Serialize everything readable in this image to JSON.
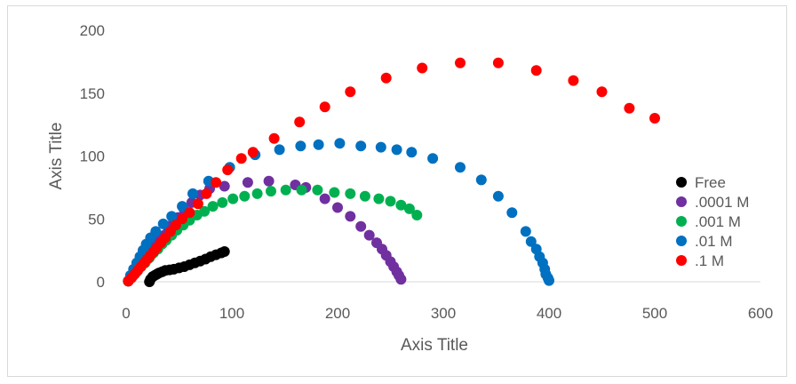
{
  "chart_data": {
    "type": "scatter",
    "title": "",
    "xlabel": "Axis Title",
    "ylabel": "Axis Title",
    "xlim": [
      0,
      600
    ],
    "ylim": [
      0,
      200
    ],
    "xticks": [
      "0",
      "100",
      "200",
      "300",
      "400",
      "500",
      "600"
    ],
    "yticks": [
      "0",
      "50",
      "100",
      "150",
      "200"
    ],
    "grid": false,
    "legend_position": "right",
    "series": [
      {
        "name": "Free",
        "color": "#000000",
        "points": [
          [
            2,
            0.5
          ],
          [
            22,
            0
          ],
          [
            23,
            2
          ],
          [
            25,
            4
          ],
          [
            27,
            5
          ],
          [
            29,
            6
          ],
          [
            31,
            7
          ],
          [
            34,
            8
          ],
          [
            37,
            9
          ],
          [
            41,
            9.5
          ],
          [
            45,
            10
          ],
          [
            50,
            11
          ],
          [
            55,
            12
          ],
          [
            60,
            13.5
          ],
          [
            65,
            15
          ],
          [
            70,
            16.5
          ],
          [
            75,
            18
          ],
          [
            80,
            20
          ],
          [
            85,
            21.5
          ],
          [
            90,
            23
          ],
          [
            93,
            24
          ]
        ]
      },
      {
        "name": ".0001 M",
        "color": "#7030a0",
        "points": [
          [
            2,
            0.5
          ],
          [
            5,
            4
          ],
          [
            8,
            8
          ],
          [
            12,
            12
          ],
          [
            16,
            17
          ],
          [
            20,
            21
          ],
          [
            24,
            25
          ],
          [
            28,
            29
          ],
          [
            32,
            33
          ],
          [
            36,
            37
          ],
          [
            40,
            42
          ],
          [
            44,
            46
          ],
          [
            49,
            51
          ],
          [
            55,
            57
          ],
          [
            62,
            63
          ],
          [
            70,
            69
          ],
          [
            79,
            74
          ],
          [
            93,
            76
          ],
          [
            115,
            79
          ],
          [
            135,
            80
          ],
          [
            160,
            77
          ],
          [
            170,
            75
          ],
          [
            188,
            66
          ],
          [
            200,
            59
          ],
          [
            212,
            52
          ],
          [
            222,
            44
          ],
          [
            230,
            37
          ],
          [
            237,
            31
          ],
          [
            242,
            26
          ],
          [
            246,
            21
          ],
          [
            250,
            16
          ],
          [
            253,
            12
          ],
          [
            256,
            8
          ],
          [
            258,
            5
          ],
          [
            260,
            2
          ]
        ]
      },
      {
        "name": ".001 M",
        "color": "#00b050",
        "points": [
          [
            2,
            0.5
          ],
          [
            6,
            4
          ],
          [
            10,
            8
          ],
          [
            14,
            12
          ],
          [
            18,
            15
          ],
          [
            22,
            19
          ],
          [
            26,
            23
          ],
          [
            30,
            26
          ],
          [
            34,
            30
          ],
          [
            38,
            33
          ],
          [
            43,
            37
          ],
          [
            48,
            41
          ],
          [
            54,
            45
          ],
          [
            60,
            49
          ],
          [
            67,
            53
          ],
          [
            74,
            56
          ],
          [
            82,
            60
          ],
          [
            91,
            63
          ],
          [
            101,
            66
          ],
          [
            112,
            68
          ],
          [
            124,
            70
          ],
          [
            137,
            72
          ],
          [
            151,
            73
          ],
          [
            166,
            73
          ],
          [
            181,
            73
          ],
          [
            197,
            71
          ],
          [
            212,
            70
          ],
          [
            226,
            68
          ],
          [
            239,
            66
          ],
          [
            250,
            64
          ],
          [
            260,
            61
          ],
          [
            268,
            58
          ],
          [
            275,
            53
          ]
        ]
      },
      {
        "name": ".01 M",
        "color": "#0070c0",
        "points": [
          [
            2,
            0.5
          ],
          [
            4,
            5
          ],
          [
            7,
            10
          ],
          [
            10,
            15
          ],
          [
            13,
            20
          ],
          [
            16,
            25
          ],
          [
            19,
            30
          ],
          [
            23,
            35
          ],
          [
            28,
            40
          ],
          [
            35,
            46
          ],
          [
            43,
            52
          ],
          [
            53,
            60
          ],
          [
            63,
            70
          ],
          [
            78,
            80
          ],
          [
            98,
            91
          ],
          [
            122,
            101
          ],
          [
            145,
            105
          ],
          [
            165,
            108
          ],
          [
            182,
            109
          ],
          [
            202,
            110
          ],
          [
            222,
            108
          ],
          [
            241,
            107
          ],
          [
            256,
            105
          ],
          [
            270,
            103
          ],
          [
            290,
            98
          ],
          [
            316,
            91
          ],
          [
            336,
            81
          ],
          [
            352,
            68
          ],
          [
            365,
            55
          ],
          [
            378,
            40
          ],
          [
            383,
            32
          ],
          [
            388,
            26
          ],
          [
            391,
            20
          ],
          [
            394,
            15
          ],
          [
            396,
            10
          ],
          [
            397,
            6
          ],
          [
            399,
            3
          ],
          [
            400,
            1
          ]
        ]
      },
      {
        "name": ".1 M",
        "color": "#ff0000",
        "points": [
          [
            2,
            0.5
          ],
          [
            5,
            3
          ],
          [
            8,
            6
          ],
          [
            11,
            9
          ],
          [
            14,
            12
          ],
          [
            17,
            15
          ],
          [
            20,
            18
          ],
          [
            23,
            21
          ],
          [
            26,
            24
          ],
          [
            29,
            27
          ],
          [
            33,
            31
          ],
          [
            37,
            35
          ],
          [
            42,
            40
          ],
          [
            47,
            45
          ],
          [
            53,
            50
          ],
          [
            60,
            55
          ],
          [
            68,
            62
          ],
          [
            76,
            70
          ],
          [
            85,
            79
          ],
          [
            96,
            89
          ],
          [
            109,
            98
          ],
          [
            120,
            103
          ],
          [
            140,
            114
          ],
          [
            164,
            127
          ],
          [
            188,
            139
          ],
          [
            212,
            151
          ],
          [
            246,
            162
          ],
          [
            280,
            170
          ],
          [
            316,
            174
          ],
          [
            352,
            174
          ],
          [
            388,
            168
          ],
          [
            423,
            160
          ],
          [
            450,
            151
          ],
          [
            476,
            138
          ],
          [
            500,
            130
          ]
        ]
      }
    ]
  }
}
